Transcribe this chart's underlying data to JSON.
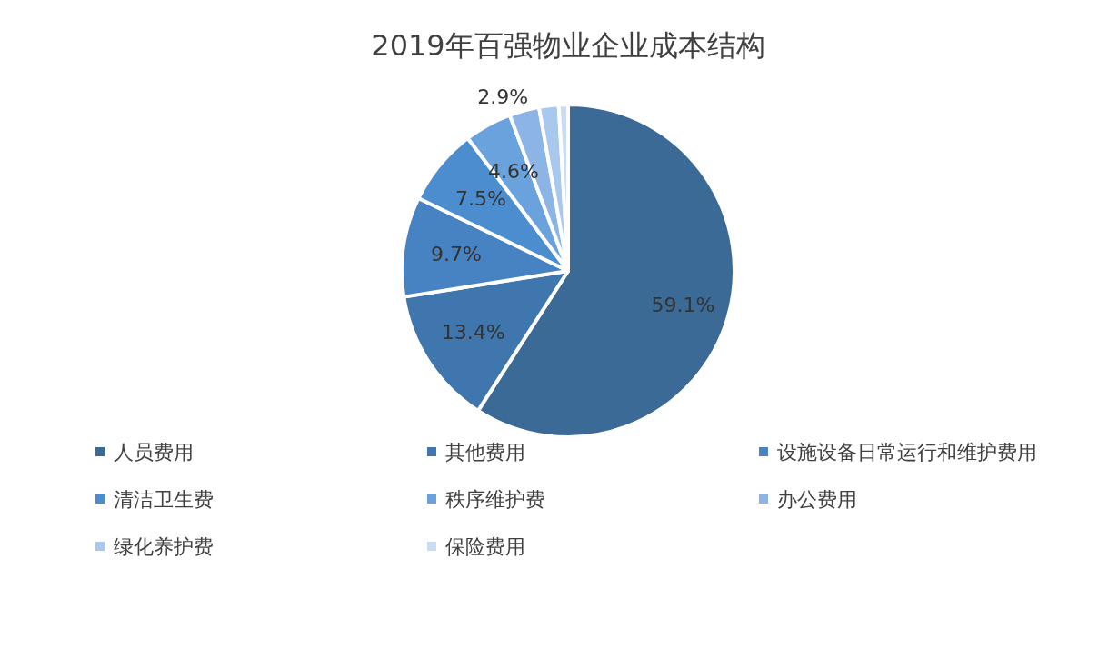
{
  "chart_data": {
    "type": "pie",
    "title": "2019年百强物业企业成本结构",
    "categories": [
      "人员费用",
      "其他费用",
      "设施设备日常运行和维护费用",
      "清洁卫生费",
      "秩序维护费",
      "办公费用",
      "绿化养护费",
      "保险费用"
    ],
    "values": [
      59.1,
      13.4,
      9.7,
      7.5,
      4.6,
      2.9,
      1.9,
      0.9
    ],
    "colors": [
      "#3c6a96",
      "#3f76ad",
      "#4783c2",
      "#4c8dd0",
      "#69a2dc",
      "#8cb5e5",
      "#a9c8ed",
      "#c8dcf3"
    ],
    "value_labels": [
      "59.1%",
      "13.4%",
      "9.7%",
      "7.5%",
      "4.6%",
      "2.9%",
      null,
      null
    ],
    "legend": "bottom"
  }
}
